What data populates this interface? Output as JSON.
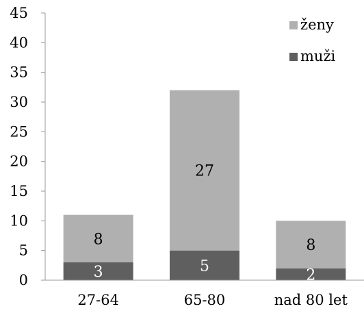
{
  "chart_data": {
    "type": "bar",
    "stacked": true,
    "categories": [
      "27-64",
      "65-80",
      "nad 80 let"
    ],
    "series": [
      {
        "name": "muži",
        "values": [
          3,
          5,
          2
        ],
        "color": "#5f5f5f",
        "label_color": "#ffffff"
      },
      {
        "name": "ženy",
        "values": [
          8,
          27,
          8
        ],
        "color": "#b0b0b0",
        "label_color": "#000000"
      }
    ],
    "title": "",
    "xlabel": "",
    "ylabel": "",
    "ylim": [
      0,
      45
    ],
    "yticks": [
      0,
      5,
      10,
      15,
      20,
      25,
      30,
      35,
      40,
      45
    ],
    "grid": false,
    "legend_position": "top-right",
    "legend_order": [
      "ženy",
      "muži"
    ]
  }
}
